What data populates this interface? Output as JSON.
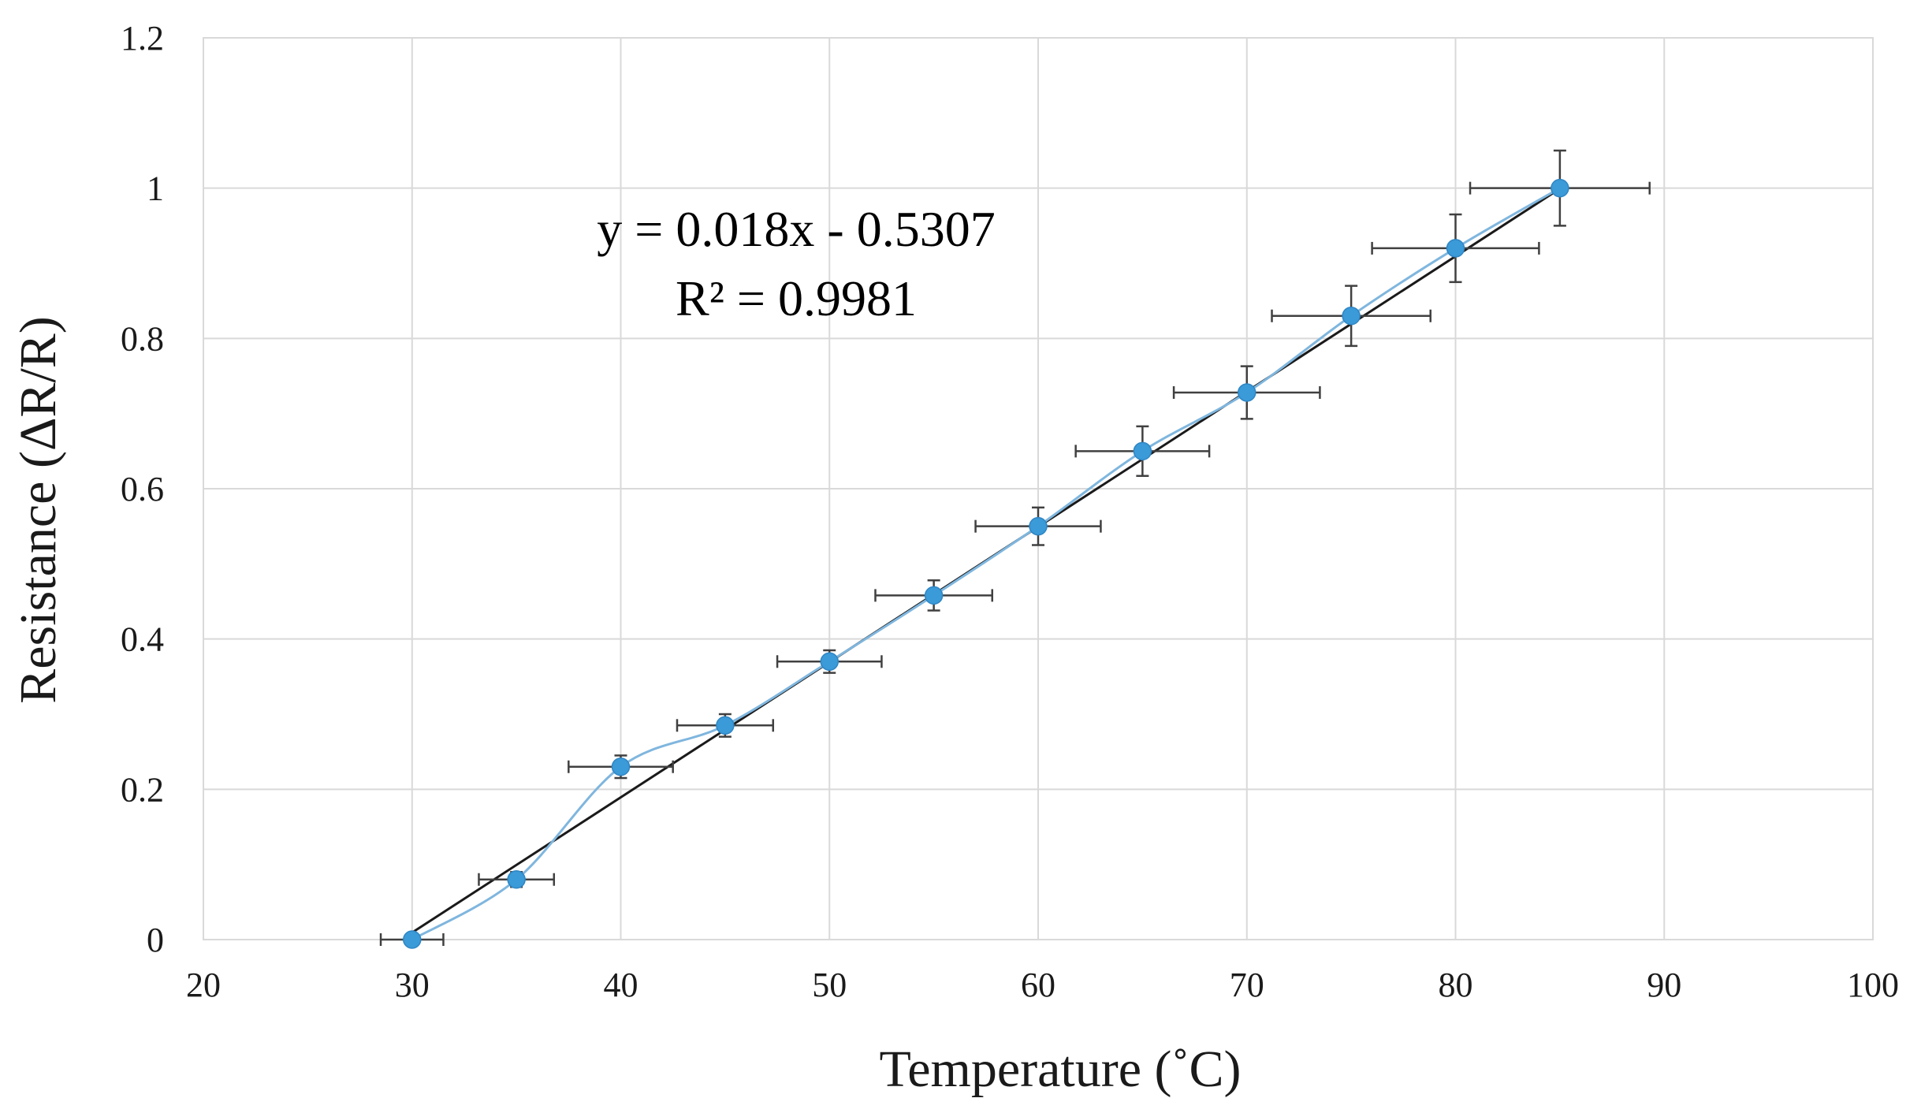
{
  "chart_data": {
    "type": "scatter",
    "title": "",
    "xlabel": "Temperature (˚C)",
    "ylabel": "Resistance (ΔR/R)",
    "xlim": [
      20,
      100
    ],
    "ylim": [
      0,
      1.2
    ],
    "x_ticks": [
      20,
      30,
      40,
      50,
      60,
      70,
      80,
      90,
      100
    ],
    "x_tick_labels": [
      "20",
      "30",
      "40",
      "50",
      "60",
      "70",
      "80",
      "90",
      "100"
    ],
    "y_ticks": [
      0,
      0.2,
      0.4,
      0.6,
      0.8,
      1.0,
      1.2
    ],
    "y_tick_labels": [
      "0",
      "0.2",
      "0.4",
      "0.6",
      "0.8",
      "1",
      "1.2"
    ],
    "grid": true,
    "series": [
      {
        "name": "Resistance",
        "color": "#3b9ad8",
        "line_style": "smooth",
        "x": [
          30,
          35,
          40,
          45,
          50,
          55,
          60,
          65,
          70,
          75,
          80,
          85
        ],
        "y": [
          0.0,
          0.08,
          0.23,
          0.285,
          0.37,
          0.458,
          0.55,
          0.65,
          0.728,
          0.83,
          0.92,
          1.0
        ],
        "x_error": [
          1.5,
          1.8,
          2.5,
          2.3,
          2.5,
          2.8,
          3.0,
          3.2,
          3.5,
          3.8,
          4.0,
          4.3
        ],
        "y_error": [
          0.0,
          0.01,
          0.015,
          0.015,
          0.015,
          0.02,
          0.025,
          0.033,
          0.035,
          0.04,
          0.045,
          0.05
        ]
      }
    ],
    "trendline": {
      "type": "linear",
      "slope": 0.018,
      "intercept": -0.5307,
      "x_range": [
        30,
        85
      ],
      "color": "#1a1a1a",
      "equation": "y = 0.018x - 0.5307",
      "r_squared": "R² = 0.9981"
    },
    "annotation_placement": "upper-left of plot area"
  }
}
